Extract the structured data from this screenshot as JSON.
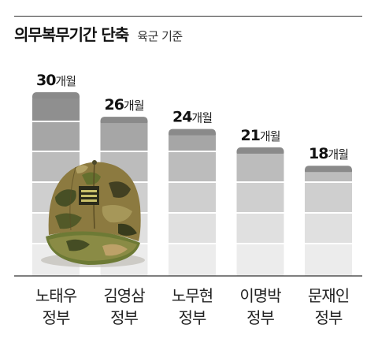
{
  "title": "의무복무기간 단축",
  "subtitle": "육군 기준",
  "chart_data": {
    "type": "bar",
    "categories": [
      {
        "line1": "노태우",
        "line2": "정부"
      },
      {
        "line1": "김영삼",
        "line2": "정부"
      },
      {
        "line1": "노무현",
        "line2": "정부"
      },
      {
        "line1": "이명박",
        "line2": "정부"
      },
      {
        "line1": "문재인",
        "line2": "정부"
      }
    ],
    "values": [
      30,
      26,
      24,
      21,
      18
    ],
    "value_labels": [
      "30",
      "26",
      "24",
      "21",
      "18"
    ],
    "unit": "개월",
    "ylim": [
      0,
      30
    ],
    "series_color_top": "#8c8c8c",
    "series_color_bottom": "#ececec"
  },
  "illustration": {
    "icon": "military-cap-icon"
  }
}
